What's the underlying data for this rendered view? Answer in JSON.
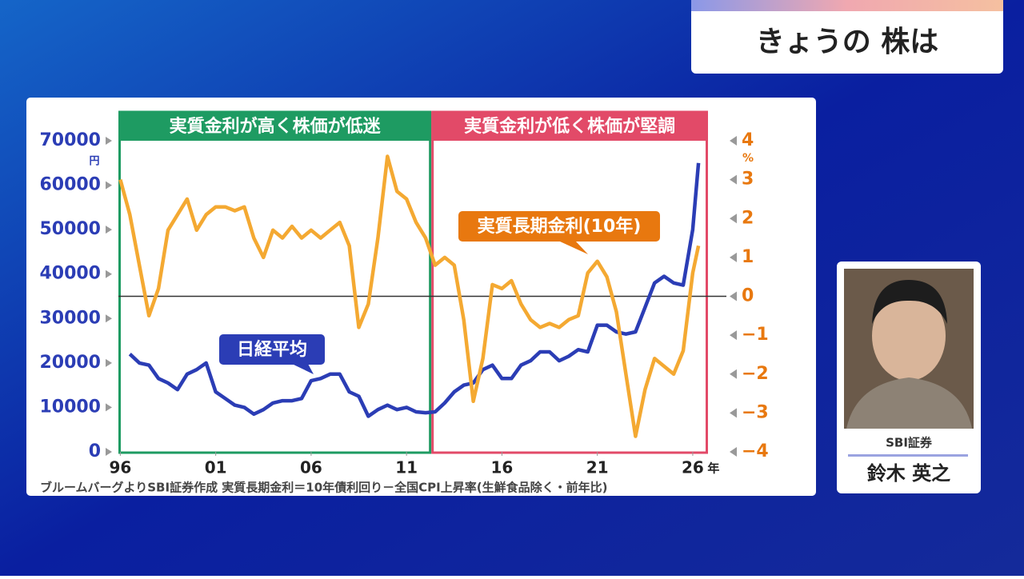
{
  "header": {
    "title": "きょうの 株は"
  },
  "guest": {
    "company": "SBI証券",
    "name": "鈴木 英之"
  },
  "chart_data": {
    "type": "line",
    "note": "ブルームバーグよりSBI証券作成 実質長期金利＝10年債利回り－全国CPI上昇率(生鮮食品除く・前年比)",
    "xlim": [
      1995.9,
      2026.8
    ],
    "xticks": [
      {
        "value": 1996,
        "label": "96"
      },
      {
        "value": 2001,
        "label": "01"
      },
      {
        "value": 2006,
        "label": "06"
      },
      {
        "value": 2011,
        "label": "11"
      },
      {
        "value": 2016,
        "label": "16"
      },
      {
        "value": 2021,
        "label": "21"
      },
      {
        "value": 2026,
        "label": "26"
      }
    ],
    "x_unit": "年",
    "ylim": [
      0,
      70000
    ],
    "yticks": [
      0,
      10000,
      20000,
      30000,
      40000,
      50000,
      60000,
      70000
    ],
    "y_unit": "円",
    "y2lim": [
      -4,
      4
    ],
    "y2ticks": [
      {
        "value": -4,
        "label": "−4"
      },
      {
        "value": -3,
        "label": "−3"
      },
      {
        "value": -2,
        "label": "−2"
      },
      {
        "value": -1,
        "label": "−1"
      },
      0,
      1,
      2,
      3,
      4
    ],
    "y2_unit": "%",
    "y2_reference": 0,
    "regions": [
      {
        "label": "実質金利が高く株価が低迷",
        "color": "#1e9b62",
        "start": 1995.9,
        "end": 2012.3
      },
      {
        "label": "実質金利が低く株価が堅調",
        "color": "#e24a68",
        "start": 2012.3,
        "end": 2026.8
      }
    ],
    "series": [
      {
        "name": "日経平均",
        "color": "#2b3db5",
        "x": [
          1996.5,
          1997,
          1997.5,
          1998,
          1998.5,
          1999,
          1999.5,
          2000,
          2000.5,
          2001,
          2001.5,
          2002,
          2002.5,
          2003,
          2003.5,
          2004,
          2004.5,
          2005,
          2005.5,
          2006,
          2006.5,
          2007,
          2007.5,
          2008,
          2008.5,
          2009,
          2009.5,
          2010,
          2010.5,
          2011,
          2011.5,
          2012,
          2012.5,
          2013,
          2013.5,
          2014,
          2014.5,
          2015,
          2015.5,
          2016,
          2016.5,
          2017,
          2017.5,
          2018,
          2018.5,
          2019,
          2019.5,
          2020,
          2020.5,
          2021,
          2021.5,
          2022,
          2022.5,
          2023,
          2023.5,
          2024,
          2024.5,
          2025,
          2025.5,
          2026,
          2026.3
        ],
        "values": [
          22000,
          20000,
          19500,
          16500,
          15500,
          14000,
          17500,
          18500,
          20000,
          13500,
          12000,
          10500,
          10000,
          8500,
          9500,
          11000,
          11500,
          11500,
          12000,
          16000,
          16500,
          17500,
          17500,
          13500,
          12500,
          8000,
          9500,
          10500,
          9500,
          10000,
          9000,
          8800,
          9000,
          11000,
          13500,
          15000,
          15500,
          18500,
          19500,
          16500,
          16500,
          19500,
          20500,
          22500,
          22500,
          20500,
          21500,
          23000,
          22500,
          28500,
          28500,
          27000,
          26500,
          27000,
          32500,
          38000,
          39500,
          38000,
          37500,
          50000,
          65000
        ]
      },
      {
        "name": "実質長期金利(10年)",
        "color": "#f4a932",
        "axis": "y2",
        "x": [
          1996,
          1996.5,
          1997,
          1997.5,
          1998,
          1998.5,
          1999,
          1999.5,
          2000,
          2000.5,
          2001,
          2001.5,
          2002,
          2002.5,
          2003,
          2003.5,
          2004,
          2004.5,
          2005,
          2005.5,
          2006,
          2006.5,
          2007,
          2007.5,
          2008,
          2008.5,
          2009,
          2009.5,
          2010,
          2010.5,
          2011,
          2011.5,
          2012,
          2012.5,
          2013,
          2013.5,
          2014,
          2014.5,
          2015,
          2015.5,
          2016,
          2016.5,
          2017,
          2017.5,
          2018,
          2018.5,
          2019,
          2019.5,
          2020,
          2020.5,
          2021,
          2021.5,
          2022,
          2022.5,
          2023,
          2023.5,
          2024,
          2024.5,
          2025,
          2025.5,
          2026,
          2026.3
        ],
        "values": [
          3.0,
          2.1,
          0.8,
          -0.5,
          0.2,
          1.7,
          2.1,
          2.5,
          1.7,
          2.1,
          2.3,
          2.3,
          2.2,
          2.3,
          1.5,
          1.0,
          1.7,
          1.5,
          1.8,
          1.5,
          1.7,
          1.5,
          1.7,
          1.9,
          1.3,
          -0.8,
          -0.2,
          1.5,
          3.6,
          2.7,
          2.5,
          1.9,
          1.5,
          0.8,
          1.0,
          0.8,
          -0.6,
          -2.7,
          -1.6,
          0.3,
          0.2,
          0.4,
          -0.2,
          -0.6,
          -0.8,
          -0.7,
          -0.8,
          -0.6,
          -0.5,
          0.6,
          0.9,
          0.5,
          -0.4,
          -2.0,
          -3.6,
          -2.4,
          -1.6,
          -1.8,
          -2.0,
          -1.4,
          0.6,
          1.3
        ]
      }
    ]
  }
}
